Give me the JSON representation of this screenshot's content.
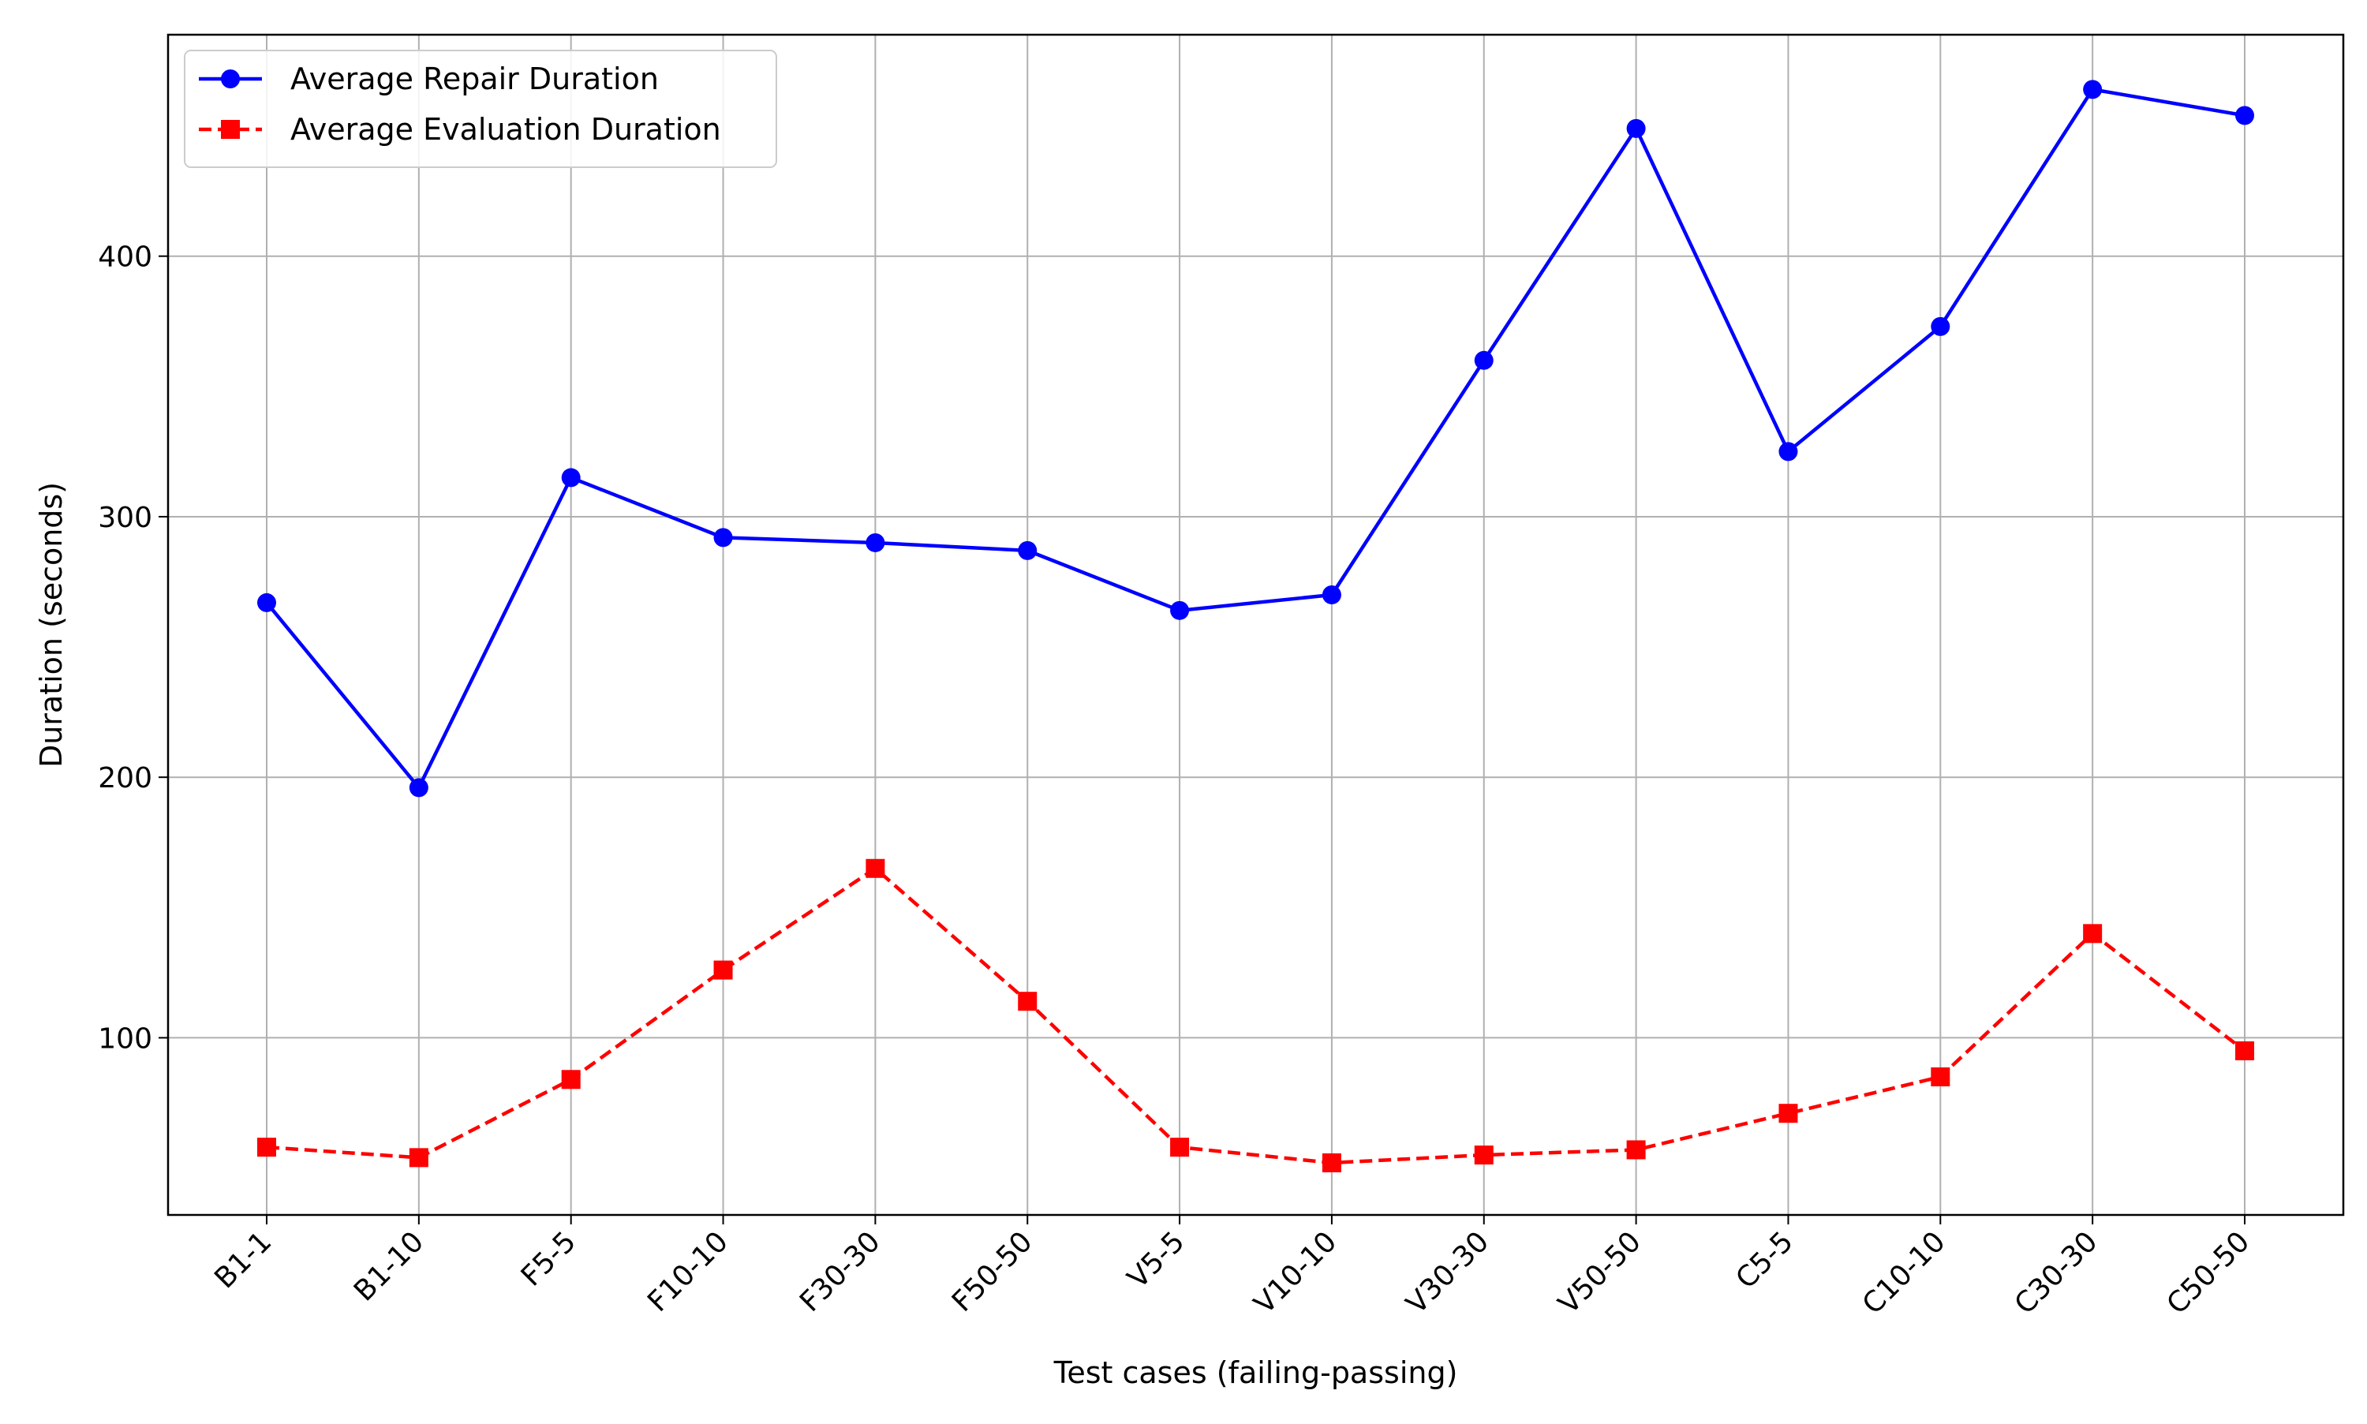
{
  "chart_data": {
    "type": "line",
    "title": "",
    "xlabel": "Test cases (failing-passing)",
    "ylabel": "Duration (seconds)",
    "categories": [
      "B1-1",
      "B1-10",
      "F5-5",
      "F10-10",
      "F30-30",
      "F50-50",
      "V5-5",
      "V10-10",
      "V30-30",
      "V50-50",
      "C5-5",
      "C10-10",
      "C30-30",
      "C50-50"
    ],
    "series": [
      {
        "name": "Average Repair Duration",
        "color": "#0000ff",
        "line_style": "solid",
        "marker": "circle",
        "values": [
          267,
          196,
          315,
          292,
          290,
          287,
          264,
          270,
          360,
          449,
          325,
          373,
          464,
          454
        ]
      },
      {
        "name": "Average Evaluation Duration",
        "color": "#ff0000",
        "line_style": "dashed",
        "marker": "square",
        "values": [
          58,
          54,
          84,
          126,
          165,
          114,
          58,
          52,
          55,
          57,
          71,
          85,
          140,
          95
        ]
      }
    ],
    "ylim": [
      32,
      485
    ],
    "yticks": [
      100,
      200,
      300,
      400
    ],
    "grid": true,
    "legend_position": "top-left"
  }
}
